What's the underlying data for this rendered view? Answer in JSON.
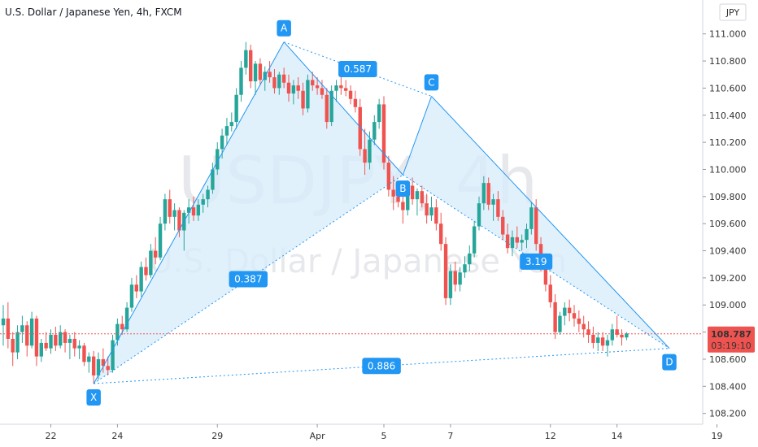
{
  "chart_data": {
    "type": "candlestick",
    "title": "U.S. Dollar / Japanese Yen, 4h, FXCM",
    "watermark_symbol": "USDJPY, 4h",
    "watermark_name": "U.S. Dollar / Japanese Yen",
    "currency_badge": "JPY",
    "ylim": [
      108.12,
      111.25
    ],
    "y_ticks": [
      "111.000",
      "110.800",
      "110.600",
      "110.400",
      "110.200",
      "110.000",
      "109.800",
      "109.600",
      "109.400",
      "109.200",
      "109.000",
      "108.800",
      "108.600",
      "108.400",
      "108.200"
    ],
    "y_tick_values": [
      111.0,
      110.8,
      110.6,
      110.4,
      110.2,
      110.0,
      109.8,
      109.6,
      109.4,
      109.2,
      109.0,
      108.8,
      108.6,
      108.4,
      108.2
    ],
    "x_ticks": [
      "22",
      "24",
      "29",
      "Apr",
      "5",
      "7",
      "12",
      "14",
      "19"
    ],
    "x_tick_index": [
      10,
      24,
      45,
      66,
      80,
      94,
      115,
      129,
      150
    ],
    "current_price": "108.787",
    "current_price_value": 108.787,
    "countdown": "03:19:10",
    "colors": {
      "up": "#26a69a",
      "down": "#ef5350",
      "pattern": "#2196f3",
      "fill": "#d7ecfb"
    },
    "pattern": {
      "points": [
        {
          "label": "X",
          "index": 19,
          "price": 108.42
        },
        {
          "label": "A",
          "index": 59,
          "price": 110.94
        },
        {
          "label": "B",
          "index": 84,
          "price": 109.96
        },
        {
          "label": "C",
          "index": 90,
          "price": 110.54
        },
        {
          "label": "D",
          "index": 140,
          "price": 108.68
        }
      ],
      "ratios": [
        {
          "label": "0.387",
          "between": [
            "X",
            "B"
          ]
        },
        {
          "label": "0.587",
          "between": [
            "A",
            "C"
          ]
        },
        {
          "label": "3.19",
          "between": [
            "B",
            "D"
          ]
        },
        {
          "label": "0.886",
          "between": [
            "X",
            "D"
          ]
        }
      ]
    },
    "ohlc": [
      [
        108.85,
        109.0,
        108.7,
        108.9
      ],
      [
        108.9,
        109.02,
        108.68,
        108.75
      ],
      [
        108.75,
        108.8,
        108.55,
        108.65
      ],
      [
        108.65,
        108.85,
        108.6,
        108.8
      ],
      [
        108.8,
        108.92,
        108.72,
        108.85
      ],
      [
        108.85,
        108.88,
        108.62,
        108.7
      ],
      [
        108.7,
        108.95,
        108.68,
        108.9
      ],
      [
        108.9,
        108.92,
        108.55,
        108.62
      ],
      [
        108.62,
        108.75,
        108.58,
        108.72
      ],
      [
        108.72,
        108.8,
        108.66,
        108.68
      ],
      [
        108.68,
        108.82,
        108.64,
        108.78
      ],
      [
        108.78,
        108.84,
        108.66,
        108.7
      ],
      [
        108.7,
        108.85,
        108.68,
        108.8
      ],
      [
        108.8,
        108.82,
        108.65,
        108.72
      ],
      [
        108.72,
        108.78,
        108.6,
        108.75
      ],
      [
        108.75,
        108.8,
        108.62,
        108.68
      ],
      [
        108.68,
        108.74,
        108.6,
        108.7
      ],
      [
        108.7,
        108.72,
        108.55,
        108.58
      ],
      [
        108.58,
        108.65,
        108.5,
        108.62
      ],
      [
        108.62,
        108.66,
        108.42,
        108.48
      ],
      [
        108.48,
        108.65,
        108.45,
        108.6
      ],
      [
        108.6,
        108.68,
        108.5,
        108.55
      ],
      [
        108.55,
        108.62,
        108.48,
        108.52
      ],
      [
        108.52,
        108.78,
        108.5,
        108.74
      ],
      [
        108.74,
        108.9,
        108.7,
        108.86
      ],
      [
        108.86,
        108.92,
        108.78,
        108.82
      ],
      [
        108.82,
        109.02,
        108.8,
        108.98
      ],
      [
        108.98,
        109.2,
        108.95,
        109.15
      ],
      [
        109.15,
        109.22,
        109.05,
        109.1
      ],
      [
        109.1,
        109.32,
        109.06,
        109.28
      ],
      [
        109.28,
        109.35,
        109.18,
        109.22
      ],
      [
        109.22,
        109.45,
        109.2,
        109.4
      ],
      [
        109.4,
        109.5,
        109.3,
        109.35
      ],
      [
        109.35,
        109.65,
        109.33,
        109.6
      ],
      [
        109.6,
        109.82,
        109.55,
        109.78
      ],
      [
        109.78,
        109.85,
        109.6,
        109.65
      ],
      [
        109.65,
        109.75,
        109.55,
        109.7
      ],
      [
        109.7,
        109.72,
        109.5,
        109.55
      ],
      [
        109.55,
        109.7,
        109.4,
        109.68
      ],
      [
        109.68,
        109.78,
        109.6,
        109.72
      ],
      [
        109.72,
        109.8,
        109.62,
        109.66
      ],
      [
        109.66,
        109.78,
        109.62,
        109.74
      ],
      [
        109.74,
        109.82,
        109.68,
        109.78
      ],
      [
        109.78,
        109.88,
        109.72,
        109.85
      ],
      [
        109.85,
        110.05,
        109.82,
        110.0
      ],
      [
        110.0,
        110.2,
        109.96,
        110.15
      ],
      [
        110.15,
        110.3,
        110.08,
        110.25
      ],
      [
        110.25,
        110.38,
        110.18,
        110.32
      ],
      [
        110.32,
        110.42,
        110.28,
        110.35
      ],
      [
        110.35,
        110.6,
        110.3,
        110.55
      ],
      [
        110.55,
        110.8,
        110.5,
        110.75
      ],
      [
        110.75,
        110.94,
        110.7,
        110.88
      ],
      [
        110.88,
        110.92,
        110.6,
        110.65
      ],
      [
        110.65,
        110.8,
        110.55,
        110.78
      ],
      [
        110.78,
        110.82,
        110.62,
        110.66
      ],
      [
        110.66,
        110.76,
        110.58,
        110.72
      ],
      [
        110.72,
        110.8,
        110.64,
        110.68
      ],
      [
        110.68,
        110.74,
        110.56,
        110.6
      ],
      [
        110.6,
        110.72,
        110.55,
        110.7
      ],
      [
        110.7,
        110.75,
        110.6,
        110.64
      ],
      [
        110.64,
        110.7,
        110.5,
        110.56
      ],
      [
        110.56,
        110.66,
        110.48,
        110.62
      ],
      [
        110.62,
        110.68,
        110.52,
        110.58
      ],
      [
        110.58,
        110.64,
        110.4,
        110.45
      ],
      [
        110.45,
        110.7,
        110.42,
        110.66
      ],
      [
        110.66,
        110.72,
        110.58,
        110.62
      ],
      [
        110.62,
        110.68,
        110.55,
        110.6
      ],
      [
        110.6,
        110.66,
        110.52,
        110.55
      ],
      [
        110.55,
        110.6,
        110.3,
        110.35
      ],
      [
        110.35,
        110.62,
        110.32,
        110.58
      ],
      [
        110.58,
        110.66,
        110.5,
        110.62
      ],
      [
        110.62,
        110.68,
        110.55,
        110.6
      ],
      [
        110.6,
        110.66,
        110.54,
        110.58
      ],
      [
        110.58,
        110.62,
        110.48,
        110.52
      ],
      [
        110.52,
        110.58,
        110.42,
        110.46
      ],
      [
        110.46,
        110.52,
        110.1,
        110.15
      ],
      [
        110.15,
        110.3,
        109.96,
        110.05
      ],
      [
        110.05,
        110.28,
        110.0,
        110.22
      ],
      [
        110.22,
        110.4,
        110.18,
        110.35
      ],
      [
        110.35,
        110.52,
        110.3,
        110.48
      ],
      [
        110.48,
        110.54,
        110.0,
        110.05
      ],
      [
        110.05,
        110.1,
        109.8,
        109.85
      ],
      [
        109.85,
        109.95,
        109.7,
        109.8
      ],
      [
        109.8,
        109.9,
        109.72,
        109.76
      ],
      [
        109.76,
        109.86,
        109.6,
        109.7
      ],
      [
        109.7,
        109.92,
        109.66,
        109.88
      ],
      [
        109.88,
        109.94,
        109.74,
        109.78
      ],
      [
        109.78,
        109.86,
        109.66,
        109.84
      ],
      [
        109.84,
        109.88,
        109.72,
        109.75
      ],
      [
        109.75,
        109.82,
        109.6,
        109.66
      ],
      [
        109.66,
        109.8,
        109.62,
        109.72
      ],
      [
        109.72,
        109.78,
        109.55,
        109.6
      ],
      [
        109.6,
        109.68,
        109.4,
        109.45
      ],
      [
        109.45,
        109.5,
        109.0,
        109.05
      ],
      [
        109.05,
        109.3,
        109.0,
        109.25
      ],
      [
        109.25,
        109.32,
        109.1,
        109.15
      ],
      [
        109.15,
        109.28,
        109.1,
        109.24
      ],
      [
        109.24,
        109.36,
        109.2,
        109.3
      ],
      [
        109.3,
        109.44,
        109.25,
        109.38
      ],
      [
        109.38,
        109.62,
        109.35,
        109.58
      ],
      [
        109.58,
        109.8,
        109.55,
        109.75
      ],
      [
        109.75,
        109.95,
        109.7,
        109.9
      ],
      [
        109.9,
        109.94,
        109.7,
        109.74
      ],
      [
        109.74,
        109.82,
        109.62,
        109.78
      ],
      [
        109.78,
        109.84,
        109.62,
        109.65
      ],
      [
        109.65,
        109.7,
        109.48,
        109.52
      ],
      [
        109.52,
        109.6,
        109.38,
        109.42
      ],
      [
        109.42,
        109.55,
        109.36,
        109.5
      ],
      [
        109.5,
        109.58,
        109.42,
        109.46
      ],
      [
        109.46,
        109.52,
        109.4,
        109.48
      ],
      [
        109.48,
        109.6,
        109.42,
        109.56
      ],
      [
        109.56,
        109.76,
        109.52,
        109.72
      ],
      [
        109.72,
        109.78,
        109.4,
        109.45
      ],
      [
        109.45,
        109.5,
        109.25,
        109.3
      ],
      [
        109.3,
        109.38,
        109.1,
        109.15
      ],
      [
        109.15,
        109.22,
        108.98,
        109.02
      ],
      [
        109.02,
        109.08,
        108.75,
        108.8
      ],
      [
        108.8,
        108.95,
        108.78,
        108.92
      ],
      [
        108.92,
        109.02,
        108.85,
        108.98
      ],
      [
        108.98,
        109.04,
        108.88,
        108.94
      ],
      [
        108.94,
        109.0,
        108.84,
        108.9
      ],
      [
        108.9,
        108.96,
        108.8,
        108.86
      ],
      [
        108.86,
        108.92,
        108.76,
        108.82
      ],
      [
        108.82,
        108.88,
        108.72,
        108.78
      ],
      [
        108.78,
        108.84,
        108.68,
        108.72
      ],
      [
        108.72,
        108.8,
        108.66,
        108.76
      ],
      [
        108.76,
        108.8,
        108.66,
        108.7
      ],
      [
        108.7,
        108.78,
        108.62,
        108.74
      ],
      [
        108.74,
        108.86,
        108.7,
        108.82
      ],
      [
        108.82,
        108.92,
        108.76,
        108.78
      ],
      [
        108.78,
        108.82,
        108.7,
        108.76
      ],
      [
        108.76,
        108.8,
        108.74,
        108.79
      ]
    ]
  }
}
